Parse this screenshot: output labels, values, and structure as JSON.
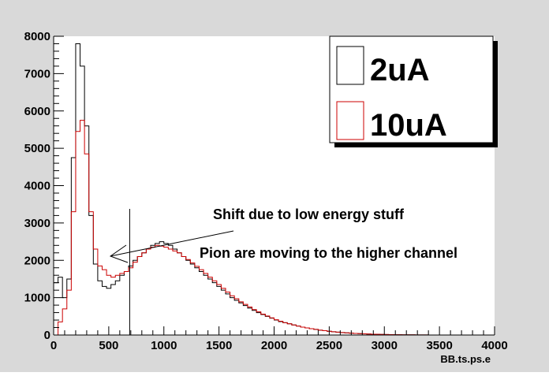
{
  "colors": {
    "canvas_bg": "#ffffff",
    "frame_bg": "#d9d9d9",
    "plot_bg": "#ffffff",
    "axis": "#000000",
    "legend_bg": "#ffffff",
    "legend_shadow": "#000000"
  },
  "chart_data": {
    "type": "histogram",
    "title": "",
    "xlabel": "BB.ts.ps.e",
    "ylabel": "",
    "xlim": [
      0,
      4000
    ],
    "ylim": [
      0,
      8000
    ],
    "x_ticks": [
      0,
      500,
      1000,
      1500,
      2000,
      2500,
      3000,
      3500,
      4000
    ],
    "y_ticks": [
      0,
      1000,
      2000,
      3000,
      4000,
      5000,
      6000,
      7000,
      8000
    ],
    "grid": false,
    "legend_position": "top-right",
    "bin_width": 40,
    "series": [
      {
        "name": "2uA",
        "color": "#000000",
        "values": [
          1400,
          1550,
          1000,
          1500,
          4750,
          7800,
          7200,
          5600,
          3200,
          1900,
          1450,
          1300,
          1250,
          1350,
          1450,
          1600,
          1700,
          1850,
          2000,
          2100,
          2200,
          2300,
          2400,
          2450,
          2500,
          2450,
          2400,
          2300,
          2200,
          2100,
          2000,
          1900,
          1800,
          1700,
          1600,
          1500,
          1400,
          1300,
          1200,
          1100,
          1000,
          930,
          860,
          790,
          720,
          660,
          600,
          550,
          500,
          450,
          400,
          360,
          330,
          300,
          270,
          240,
          210,
          190,
          170,
          150,
          130,
          115,
          100,
          88,
          77,
          67,
          58,
          50,
          43,
          37,
          31,
          26,
          22,
          19,
          16,
          13,
          11,
          9,
          8,
          6,
          5,
          4,
          3,
          2,
          2,
          1,
          1,
          1,
          0,
          0,
          0,
          0,
          0,
          0,
          0,
          0,
          0,
          0,
          0,
          0
        ]
      },
      {
        "name": "10uA",
        "color": "#cc0000",
        "values": [
          0,
          350,
          700,
          1200,
          3300,
          5450,
          5750,
          4850,
          3300,
          2300,
          1850,
          1750,
          1600,
          1550,
          1600,
          1650,
          1700,
          1800,
          1950,
          2100,
          2200,
          2300,
          2350,
          2400,
          2380,
          2350,
          2300,
          2250,
          2200,
          2100,
          2020,
          1930,
          1840,
          1750,
          1650,
          1550,
          1450,
          1350,
          1250,
          1150,
          1050,
          970,
          890,
          820,
          750,
          680,
          620,
          560,
          510,
          460,
          410,
          370,
          330,
          300,
          270,
          240,
          210,
          190,
          170,
          150,
          130,
          115,
          100,
          88,
          77,
          67,
          58,
          50,
          43,
          37,
          31,
          26,
          22,
          19,
          16,
          13,
          11,
          9,
          8,
          6,
          5,
          4,
          3,
          2,
          2,
          1,
          1,
          1,
          0,
          0,
          0,
          0,
          0,
          0,
          0,
          0,
          0,
          0,
          0,
          0
        ]
      }
    ],
    "annotations": [
      {
        "id": "shift",
        "text": "Shift due to low energy stuff"
      },
      {
        "id": "pion",
        "text": "Pion are moving to the higher channel"
      }
    ],
    "marker_line_x": 690
  }
}
